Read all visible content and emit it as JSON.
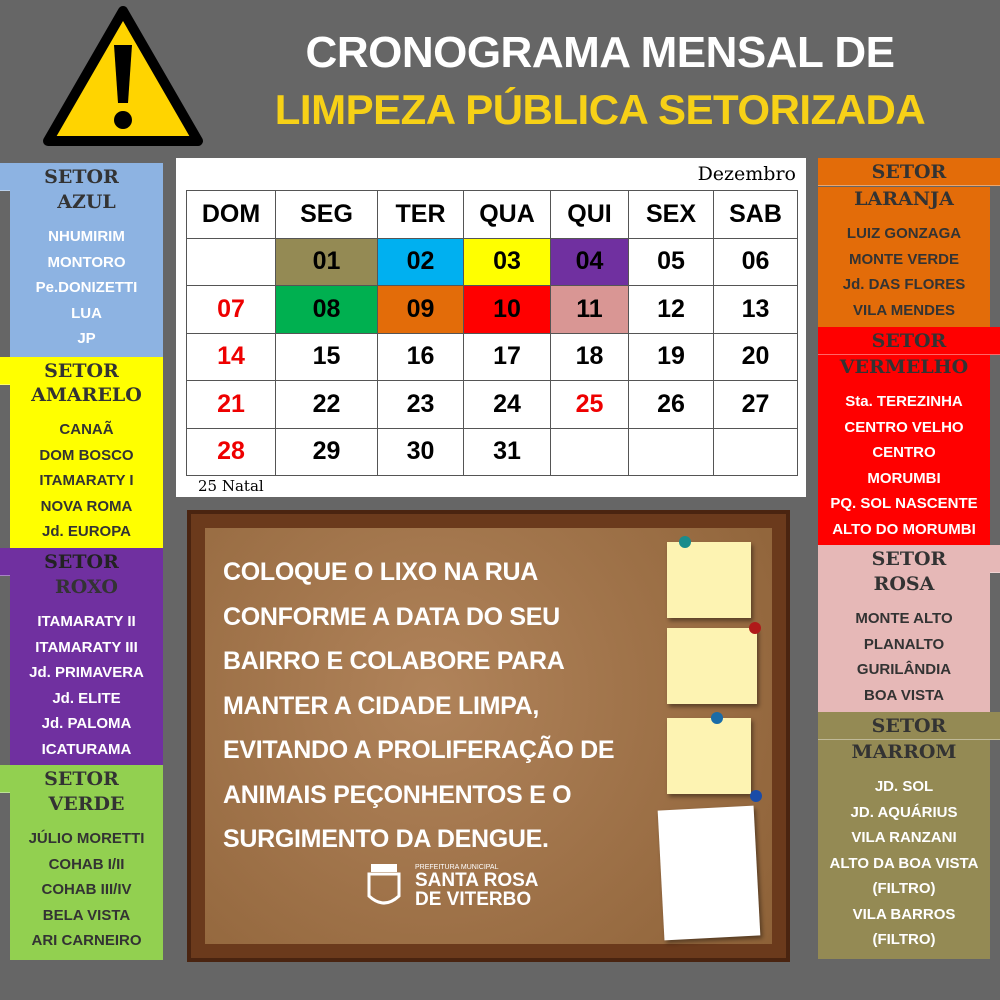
{
  "title": {
    "line1": "CRONOGRAMA MENSAL DE",
    "line2": "LIMPEZA PÚBLICA SETORIZADA"
  },
  "calendar": {
    "month": "Dezembro",
    "headers": [
      "DOM",
      "SEG",
      "TER",
      "QUA",
      "QUI",
      "SEX",
      "SAB"
    ],
    "weeks": [
      [
        "",
        "01",
        "02",
        "03",
        "04",
        "05",
        "06"
      ],
      [
        "07",
        "08",
        "09",
        "10",
        "11",
        "12",
        "13"
      ],
      [
        "14",
        "15",
        "16",
        "17",
        "18",
        "19",
        "20"
      ],
      [
        "21",
        "22",
        "23",
        "24",
        "25",
        "26",
        "27"
      ],
      [
        "28",
        "29",
        "30",
        "31",
        "",
        "",
        ""
      ]
    ],
    "highlights": {
      "01": "#948a54",
      "02": "#00b0f0",
      "03": "#ffff00",
      "04": "#7030a0",
      "08": "#00b050",
      "09": "#e36c09",
      "10": "#ff0000",
      "11": "#d99694"
    },
    "red_days": [
      "07",
      "14",
      "21",
      "28",
      "25"
    ],
    "note": "25 Natal"
  },
  "sectors": [
    {
      "label": "SETOR",
      "name": "AZUL",
      "color": "#8db3e2",
      "items": [
        "NHUMIRIM",
        "MONTORO",
        "Pe.DONIZETTI",
        "LUA",
        "JP"
      ]
    },
    {
      "label": "SETOR",
      "name": "AMARELO",
      "color": "#ffff00",
      "items": [
        "CANAÃ",
        "DOM BOSCO",
        "ITAMARATY I",
        "NOVA ROMA",
        "Jd. EUROPA"
      ]
    },
    {
      "label": "SETOR",
      "name": "ROXO",
      "color": "#7030a0",
      "items": [
        "ITAMARATY II",
        "ITAMARATY III",
        "Jd. PRIMAVERA",
        "Jd. ELITE",
        "Jd. PALOMA",
        "ICATURAMA"
      ]
    },
    {
      "label": "SETOR",
      "name": "VERDE",
      "color": "#92d050",
      "items": [
        "JÚLIO MORETTI",
        "COHAB I/II",
        "COHAB III/IV",
        "BELA VISTA",
        "ARI CARNEIRO"
      ]
    },
    {
      "label": "SETOR",
      "name": "LARANJA",
      "color": "#e36c09",
      "items": [
        "LUIZ  GONZAGA",
        "MONTE VERDE",
        "Jd. DAS FLORES",
        "VILA MENDES"
      ]
    },
    {
      "label": "SETOR",
      "name": "VERMELHO",
      "color": "#ff0000",
      "items": [
        "Sta. TEREZINHA",
        "CENTRO VELHO",
        "CENTRO",
        "MORUMBI",
        "PQ. SOL NASCENTE",
        "ALTO DO MORUMBI"
      ]
    },
    {
      "label": "SETOR",
      "name": "ROSA",
      "color": "#e6b8b7",
      "items": [
        "MONTE ALTO",
        "PLANALTO",
        "GURILÂNDIA",
        "BOA VISTA"
      ]
    },
    {
      "label": "SETOR",
      "name": "MARROM",
      "color": "#948a54",
      "items": [
        "JD. SOL",
        "JD. AQUÁRIUS",
        "VILA RANZANI",
        "ALTO DA BOA VISTA",
        "(FILTRO)",
        "VILA BARROS",
        "(FILTRO)"
      ]
    }
  ],
  "board": {
    "lines": [
      "COLOQUE O LIXO NA RUA",
      "CONFORME A DATA DO SEU",
      "BAIRRO E COLABORE PARA",
      "MANTER A CIDADE LIMPA,",
      "EVITANDO A PROLIFERAÇÃO DE",
      "ANIMAIS PEÇONHENTOS E O",
      "SURGIMENTO DA DENGUE."
    ]
  },
  "logo": {
    "small": "PREFEITURA MUNICIPAL",
    "line1": "SANTA ROSA",
    "line2": "DE VITERBO"
  }
}
